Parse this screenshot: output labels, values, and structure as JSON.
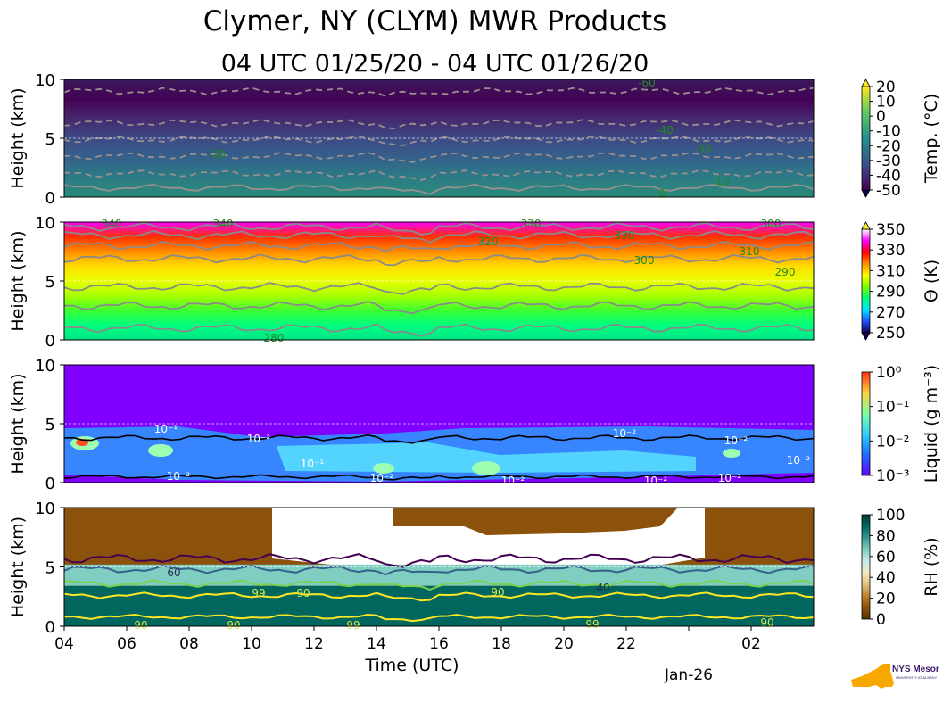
{
  "header": {
    "title": "Clymer, NY (CLYM) MWR Products",
    "subtitle": "04 UTC 01/25/20 - 04 UTC 01/26/20"
  },
  "colors": {
    "temperature_scale": [
      "#440154",
      "#3b518b",
      "#21908d",
      "#5ec962",
      "#fde725"
    ],
    "theta_scale": [
      "#150050",
      "#1f4fff",
      "#00e5ff",
      "#00ff7f",
      "#7cff00",
      "#ffff00",
      "#ff8c00",
      "#ff0000",
      "#ff00ff",
      "#ffffff"
    ],
    "liquid_scale": [
      "#6a00ff",
      "#1e6eff",
      "#2fd1ff",
      "#7dffa0",
      "#ffd040",
      "#ff3010"
    ],
    "rh_scale": [
      "#543005",
      "#8c510a",
      "#bf812d",
      "#dfc27d",
      "#f6e8c3",
      "#c7eae5",
      "#80cdc1",
      "#35978f",
      "#01665e",
      "#003c30"
    ]
  },
  "x_axis": {
    "label": "Time (UTC)",
    "ticks": [
      "04",
      "06",
      "08",
      "10",
      "12",
      "14",
      "16",
      "18",
      "20",
      "22",
      "Jan-26",
      "02"
    ]
  },
  "logo": {
    "text": "NYS Mesonet",
    "subtext": "UNIVERSITY AT ALBANY",
    "color": "#f7a800"
  },
  "chart_data": [
    {
      "type": "heatmap",
      "name": "temperature",
      "ylabel": "Height (km)",
      "yticks": [
        "0",
        "5",
        "10"
      ],
      "ylim": [
        0,
        10
      ],
      "xlim": [
        4,
        28
      ],
      "colorbar_label": "Temp. (°C)",
      "colorbar_ticks": [
        "20",
        "10",
        "0",
        "-10",
        "-20",
        "-30",
        "-40",
        "-50"
      ],
      "contour_labels": [
        "-60",
        "-40",
        "-30",
        "-20",
        "-10",
        "0"
      ],
      "levels": {
        "0": 0.8,
        "-10": 2.0,
        "-20": 3.5,
        "-30": 4.9,
        "-40": 6.3,
        "-60": 9.0
      }
    },
    {
      "type": "heatmap",
      "name": "potential_temperature",
      "ylabel": "Height (km)",
      "yticks": [
        "0",
        "5",
        "10"
      ],
      "ylim": [
        0,
        10
      ],
      "xlim": [
        4,
        28
      ],
      "colorbar_label": "Θ (K)",
      "colorbar_ticks": [
        "350",
        "330",
        "310",
        "290",
        "270",
        "250"
      ],
      "contour_labels": [
        "340",
        "340",
        "330",
        "320",
        "330",
        "300",
        "310",
        "300",
        "290",
        "280"
      ]
    },
    {
      "type": "heatmap",
      "name": "liquid_water",
      "ylabel": "Height (km)",
      "yticks": [
        "0",
        "5",
        "10"
      ],
      "ylim": [
        0,
        10
      ],
      "xlim": [
        4,
        28
      ],
      "colorbar_label": "Liquid (g m⁻³)",
      "colorbar_ticks": [
        "10⁰",
        "10⁻¹",
        "10⁻²",
        "10⁻³"
      ],
      "colorbar_scale": "log",
      "contour_labels": [
        "10⁻¹",
        "10⁻²",
        "10⁻¹",
        "10⁻²",
        "10⁻²",
        "10⁻²",
        "10⁻²",
        "10⁻²",
        "10⁻²",
        "10⁻²",
        "10⁻²"
      ]
    },
    {
      "type": "heatmap",
      "name": "relative_humidity",
      "ylabel": "Height (km)",
      "yticks": [
        "0",
        "5",
        "10"
      ],
      "ylim": [
        0,
        10
      ],
      "xlim": [
        4,
        28
      ],
      "colorbar_label": "RH (%)",
      "colorbar_ticks": [
        "100",
        "80",
        "60",
        "40",
        "20",
        "0"
      ],
      "contour_labels": [
        "60",
        "99",
        "90",
        "40",
        "99",
        "90",
        "90",
        "90",
        "99",
        "90"
      ]
    }
  ]
}
